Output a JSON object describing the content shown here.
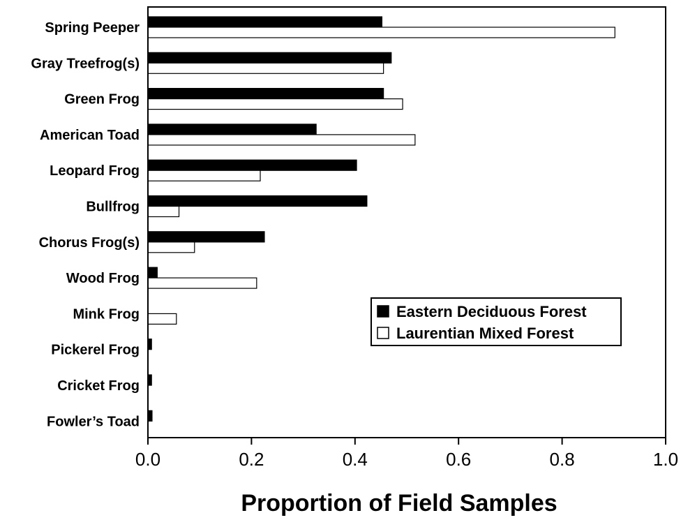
{
  "chart_data": {
    "type": "bar",
    "orientation": "horizontal",
    "title": "",
    "xlabel": "Proportion of Field Samples",
    "ylabel": "",
    "xlim": [
      0.0,
      1.0
    ],
    "xticks": [
      "0.0",
      "0.2",
      "0.4",
      "0.6",
      "0.8",
      "1.0"
    ],
    "grid": false,
    "legend_position": "right-center",
    "categories": [
      "Spring Peeper",
      "Gray Treefrog(s)",
      "Green Frog",
      "American Toad",
      "Leopard Frog",
      "Bullfrog",
      "Chorus Frog(s)",
      "Wood Frog",
      "Mink Frog",
      "Pickerel Frog",
      "Cricket Frog",
      "Fowler’s Toad"
    ],
    "series": [
      {
        "name": "Eastern Deciduous Forest",
        "color": "#000000",
        "values": [
          0.452,
          0.47,
          0.455,
          0.325,
          0.403,
          0.423,
          0.225,
          0.018,
          0.0,
          0.007,
          0.007,
          0.008
        ]
      },
      {
        "name": "Laurentian Mixed Forest",
        "color": "#ffffff",
        "values": [
          0.902,
          0.455,
          0.492,
          0.516,
          0.217,
          0.06,
          0.09,
          0.21,
          0.055,
          0.0,
          0.0,
          0.0
        ]
      }
    ]
  }
}
